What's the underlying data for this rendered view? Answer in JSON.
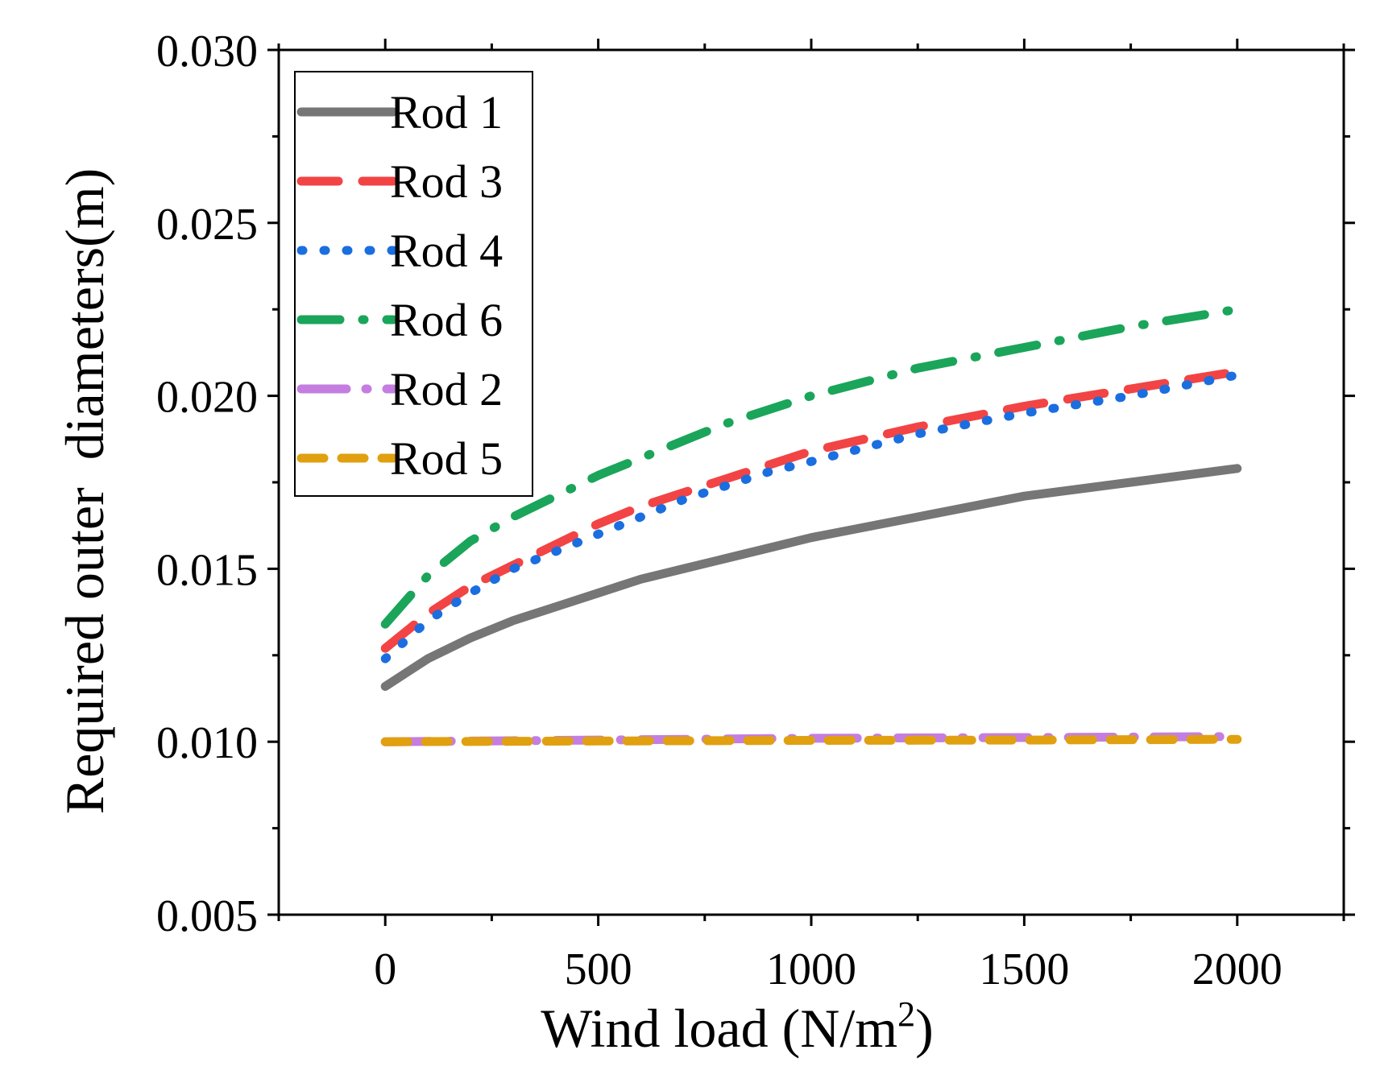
{
  "chart_data": {
    "type": "line",
    "xlabel": "Wind load (N/m",
    "xlabel_sup": "2",
    "xlabel_end": ")",
    "ylabel": "Required outer  diameters(m)",
    "xlim": [
      -250,
      2250
    ],
    "ylim": [
      0.005,
      0.03
    ],
    "xticks": [
      0,
      500,
      1000,
      1500,
      2000
    ],
    "xtick_labels": [
      "0",
      "500",
      "1000",
      "1500",
      "2000"
    ],
    "yticks": [
      0.005,
      0.01,
      0.015,
      0.02,
      0.025,
      0.03
    ],
    "ytick_labels": [
      "0.005",
      "0.010",
      "0.015",
      "0.020",
      "0.025",
      "0.030"
    ],
    "grid": false,
    "legend_position": "top-left",
    "series": [
      {
        "name": "Rod 1",
        "color": "#767676",
        "style": "solid",
        "x": [
          0,
          100,
          200,
          300,
          400,
          500,
          600,
          700,
          800,
          900,
          1000,
          1250,
          1500,
          1750,
          2000
        ],
        "y": [
          0.0116,
          0.0124,
          0.013,
          0.0135,
          0.0139,
          0.0143,
          0.0147,
          0.015,
          0.0153,
          0.0156,
          0.0159,
          0.0165,
          0.0171,
          0.0175,
          0.0179
        ]
      },
      {
        "name": "Rod 3",
        "color": "#f24444",
        "style": "dash",
        "x": [
          0,
          100,
          200,
          300,
          400,
          500,
          600,
          700,
          800,
          900,
          1000,
          1250,
          1500,
          1750,
          2000
        ],
        "y": [
          0.0127,
          0.0137,
          0.0145,
          0.0151,
          0.0157,
          0.0163,
          0.0168,
          0.0172,
          0.0176,
          0.018,
          0.0184,
          0.0191,
          0.0197,
          0.0202,
          0.0207
        ]
      },
      {
        "name": "Rod 4",
        "color": "#1a6ee0",
        "style": "dot",
        "x": [
          0,
          100,
          200,
          300,
          400,
          500,
          600,
          700,
          800,
          900,
          1000,
          1250,
          1500,
          1750,
          2000
        ],
        "y": [
          0.0124,
          0.0135,
          0.0143,
          0.015,
          0.0155,
          0.016,
          0.0165,
          0.017,
          0.0174,
          0.0178,
          0.0181,
          0.0189,
          0.0195,
          0.02,
          0.0206
        ]
      },
      {
        "name": "Rod 6",
        "color": "#1aa55a",
        "style": "dashdot",
        "x": [
          0,
          100,
          200,
          300,
          400,
          500,
          600,
          700,
          800,
          900,
          1000,
          1250,
          1500,
          1750,
          2000
        ],
        "y": [
          0.0134,
          0.0148,
          0.0158,
          0.0165,
          0.0171,
          0.0177,
          0.0182,
          0.0187,
          0.0192,
          0.0196,
          0.02,
          0.0208,
          0.0214,
          0.022,
          0.0225
        ]
      },
      {
        "name": "Rod 2",
        "color": "#c47ee0",
        "style": "longdash-dot",
        "x": [
          0,
          500,
          1000,
          1500,
          2000
        ],
        "y": [
          0.01,
          0.01005,
          0.0101,
          0.01012,
          0.01015
        ]
      },
      {
        "name": "Rod 5",
        "color": "#e0a010",
        "style": "shortdash",
        "x": [
          0,
          500,
          1000,
          1500,
          2000
        ],
        "y": [
          0.01,
          0.01002,
          0.01004,
          0.01005,
          0.01007
        ]
      }
    ]
  }
}
